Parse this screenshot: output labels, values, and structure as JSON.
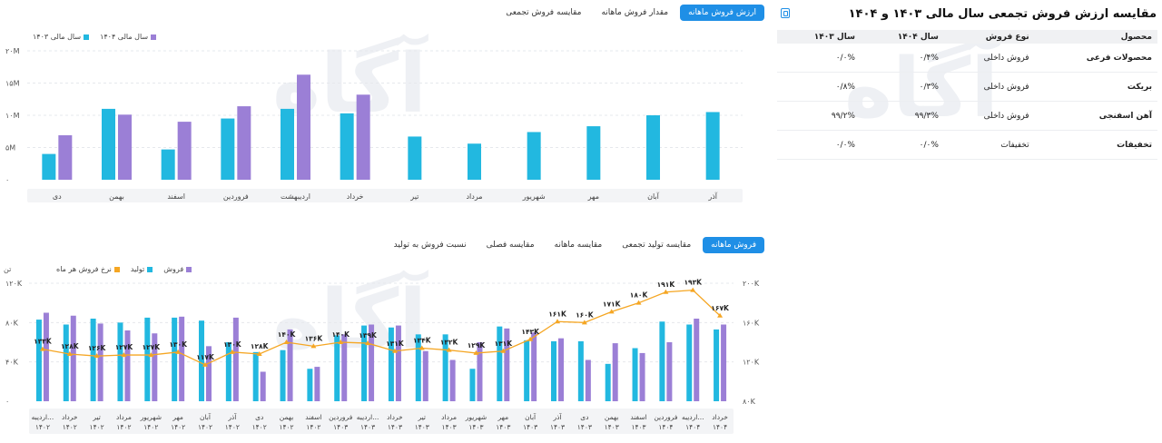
{
  "summary": {
    "title": "مقایسه ارزش فروش تجمعی سال مالی ۱۴۰۳ و ۱۴۰۴",
    "headers": [
      "محصول",
      "نوع فروش",
      "سال ۱۴۰۴",
      "سال ۱۴۰۳"
    ],
    "rows": [
      [
        "محصولات فرعی",
        "فروش داخلی",
        "۰/۴%",
        "۰/۰%"
      ],
      [
        "بریکت",
        "فروش داخلی",
        "۰/۳%",
        "۰/۸%"
      ],
      [
        "آهن اسفنجی",
        "فروش داخلی",
        "۹۹/۳%",
        "۹۹/۲%"
      ],
      [
        "تخفیفات",
        "تخفیفات",
        "۰/۰%",
        "۰/۰%"
      ]
    ]
  },
  "top_tabs": [
    {
      "label": "ارزش فروش ماهانه",
      "active": true
    },
    {
      "label": "مقدار فروش ماهانه",
      "active": false
    },
    {
      "label": "مقایسه فروش تجمعی",
      "active": false
    }
  ],
  "bottom_tabs": [
    {
      "label": "فروش ماهانه",
      "active": true
    },
    {
      "label": "مقایسه تولید تجمعی",
      "active": false
    },
    {
      "label": "مقایسه ماهانه",
      "active": false
    },
    {
      "label": "مقایسه فصلی",
      "active": false
    },
    {
      "label": "نسبت فروش به تولید",
      "active": false
    }
  ],
  "watermark": "آگاه",
  "colors": {
    "teal": "#22b8e0",
    "purple": "#9b7fd6",
    "orange": "#f5a623",
    "accent": "#1f8fe6"
  },
  "chart_data": [
    {
      "type": "bar",
      "categories": [
        "آذر",
        "آبان",
        "مهر",
        "شهریور",
        "مرداد",
        "تیر",
        "خرداد",
        "اردیبهشت",
        "فروردین",
        "اسفند",
        "بهمن",
        "دی"
      ],
      "series": [
        {
          "name": "سال مالی ۱۴۰۳",
          "values": [
            10.5,
            10,
            8.3,
            7.4,
            5.6,
            6.7,
            10.3,
            11,
            9.5,
            4.7,
            11,
            4
          ]
        },
        {
          "name": "سال مالی ۱۴۰۴",
          "values": [
            null,
            null,
            null,
            null,
            null,
            null,
            13.2,
            16.3,
            11.4,
            9,
            10.1,
            6.9
          ]
        }
      ],
      "yticks": [
        "۲۰M",
        "۱۵M",
        "۱۰M",
        "۵M",
        "۰"
      ],
      "ylim": [
        0,
        20
      ],
      "grid": true,
      "legend": "top-left"
    },
    {
      "type": "bar",
      "categories": [
        "خرداد ۱۴۰۴",
        "اردیبه... ۱۴۰۴",
        "فروردین ۱۴۰۴",
        "اسفند ۱۴۰۳",
        "بهمن ۱۴۰۳",
        "دی ۱۴۰۳",
        "آذر ۱۴۰۳",
        "آبان ۱۴۰۳",
        "مهر ۱۴۰۳",
        "شهریور ۱۴۰۳",
        "مرداد ۱۴۰۳",
        "تیر ۱۴۰۳",
        "خرداد ۱۴۰۳",
        "اردیبه... ۱۴۰۳",
        "فروردین ۱۴۰۳",
        "اسفند ۱۴۰۲",
        "بهمن ۱۴۰۲",
        "دی ۱۴۰۲",
        "آذر ۱۴۰۲",
        "آبان ۱۴۰۲",
        "مهر ۱۴۰۲",
        "شهریور ۱۴۰۲",
        "مرداد ۱۴۰۲",
        "تیر ۱۴۰۲",
        "خرداد ۱۴۰۲",
        "اردیبه... ۱۴۰۲"
      ],
      "series": [
        {
          "name": "تولید",
          "values": [
            73,
            78,
            81,
            54,
            38,
            61,
            61,
            62,
            76,
            33,
            68,
            68,
            75,
            77,
            67,
            33,
            52,
            50,
            60,
            82,
            85,
            85,
            80,
            84,
            78,
            83
          ]
        },
        {
          "name": "فروش",
          "values": [
            78,
            84,
            60,
            49,
            59,
            42,
            64,
            70,
            74,
            60,
            42,
            51,
            77,
            78,
            68,
            35,
            73,
            30,
            85,
            56,
            86,
            69,
            72,
            79,
            87,
            90
          ]
        },
        {
          "name": "نرخ فروش هر ماه",
          "values": [
            "۱۶۷K",
            "۱۹۳K",
            "۱۹۱K",
            "۱۸۰K",
            "۱۷۱K",
            "۱۶۰K",
            "۱۶۱K",
            "۱۴۳K",
            "۱۳۱K",
            "۱۲۹K",
            "۱۳۲K",
            "۱۳۴K",
            "۱۳۱K",
            "۱۳۹K",
            "۱۴۰K",
            "۱۳۶K",
            "۱۴۰K",
            "۱۲۸K",
            "۱۳۰K",
            "۱۱۷K",
            "۱۳۰K",
            "۱۲۷K",
            "۱۲۷K",
            "۱۲۶K",
            "۱۲۸K",
            "۱۳۳K"
          ]
        }
      ],
      "rate_values": [
        167,
        193,
        191,
        180,
        171,
        160,
        161,
        143,
        131,
        129,
        132,
        134,
        131,
        139,
        140,
        136,
        140,
        128,
        130,
        117,
        130,
        127,
        127,
        126,
        128,
        133
      ],
      "left_axis_title": "تن",
      "left_yticks": [
        "۱۲۰K",
        "۸۰K",
        "۴۰K",
        "۰"
      ],
      "left_ylim": [
        0,
        120
      ],
      "right_yticks": [
        "۲۰۰K",
        "۱۶۰K",
        "۱۲۰K",
        "۸۰K"
      ],
      "right_ylim": [
        80,
        200
      ],
      "grid": true,
      "legend": "top-left"
    }
  ]
}
